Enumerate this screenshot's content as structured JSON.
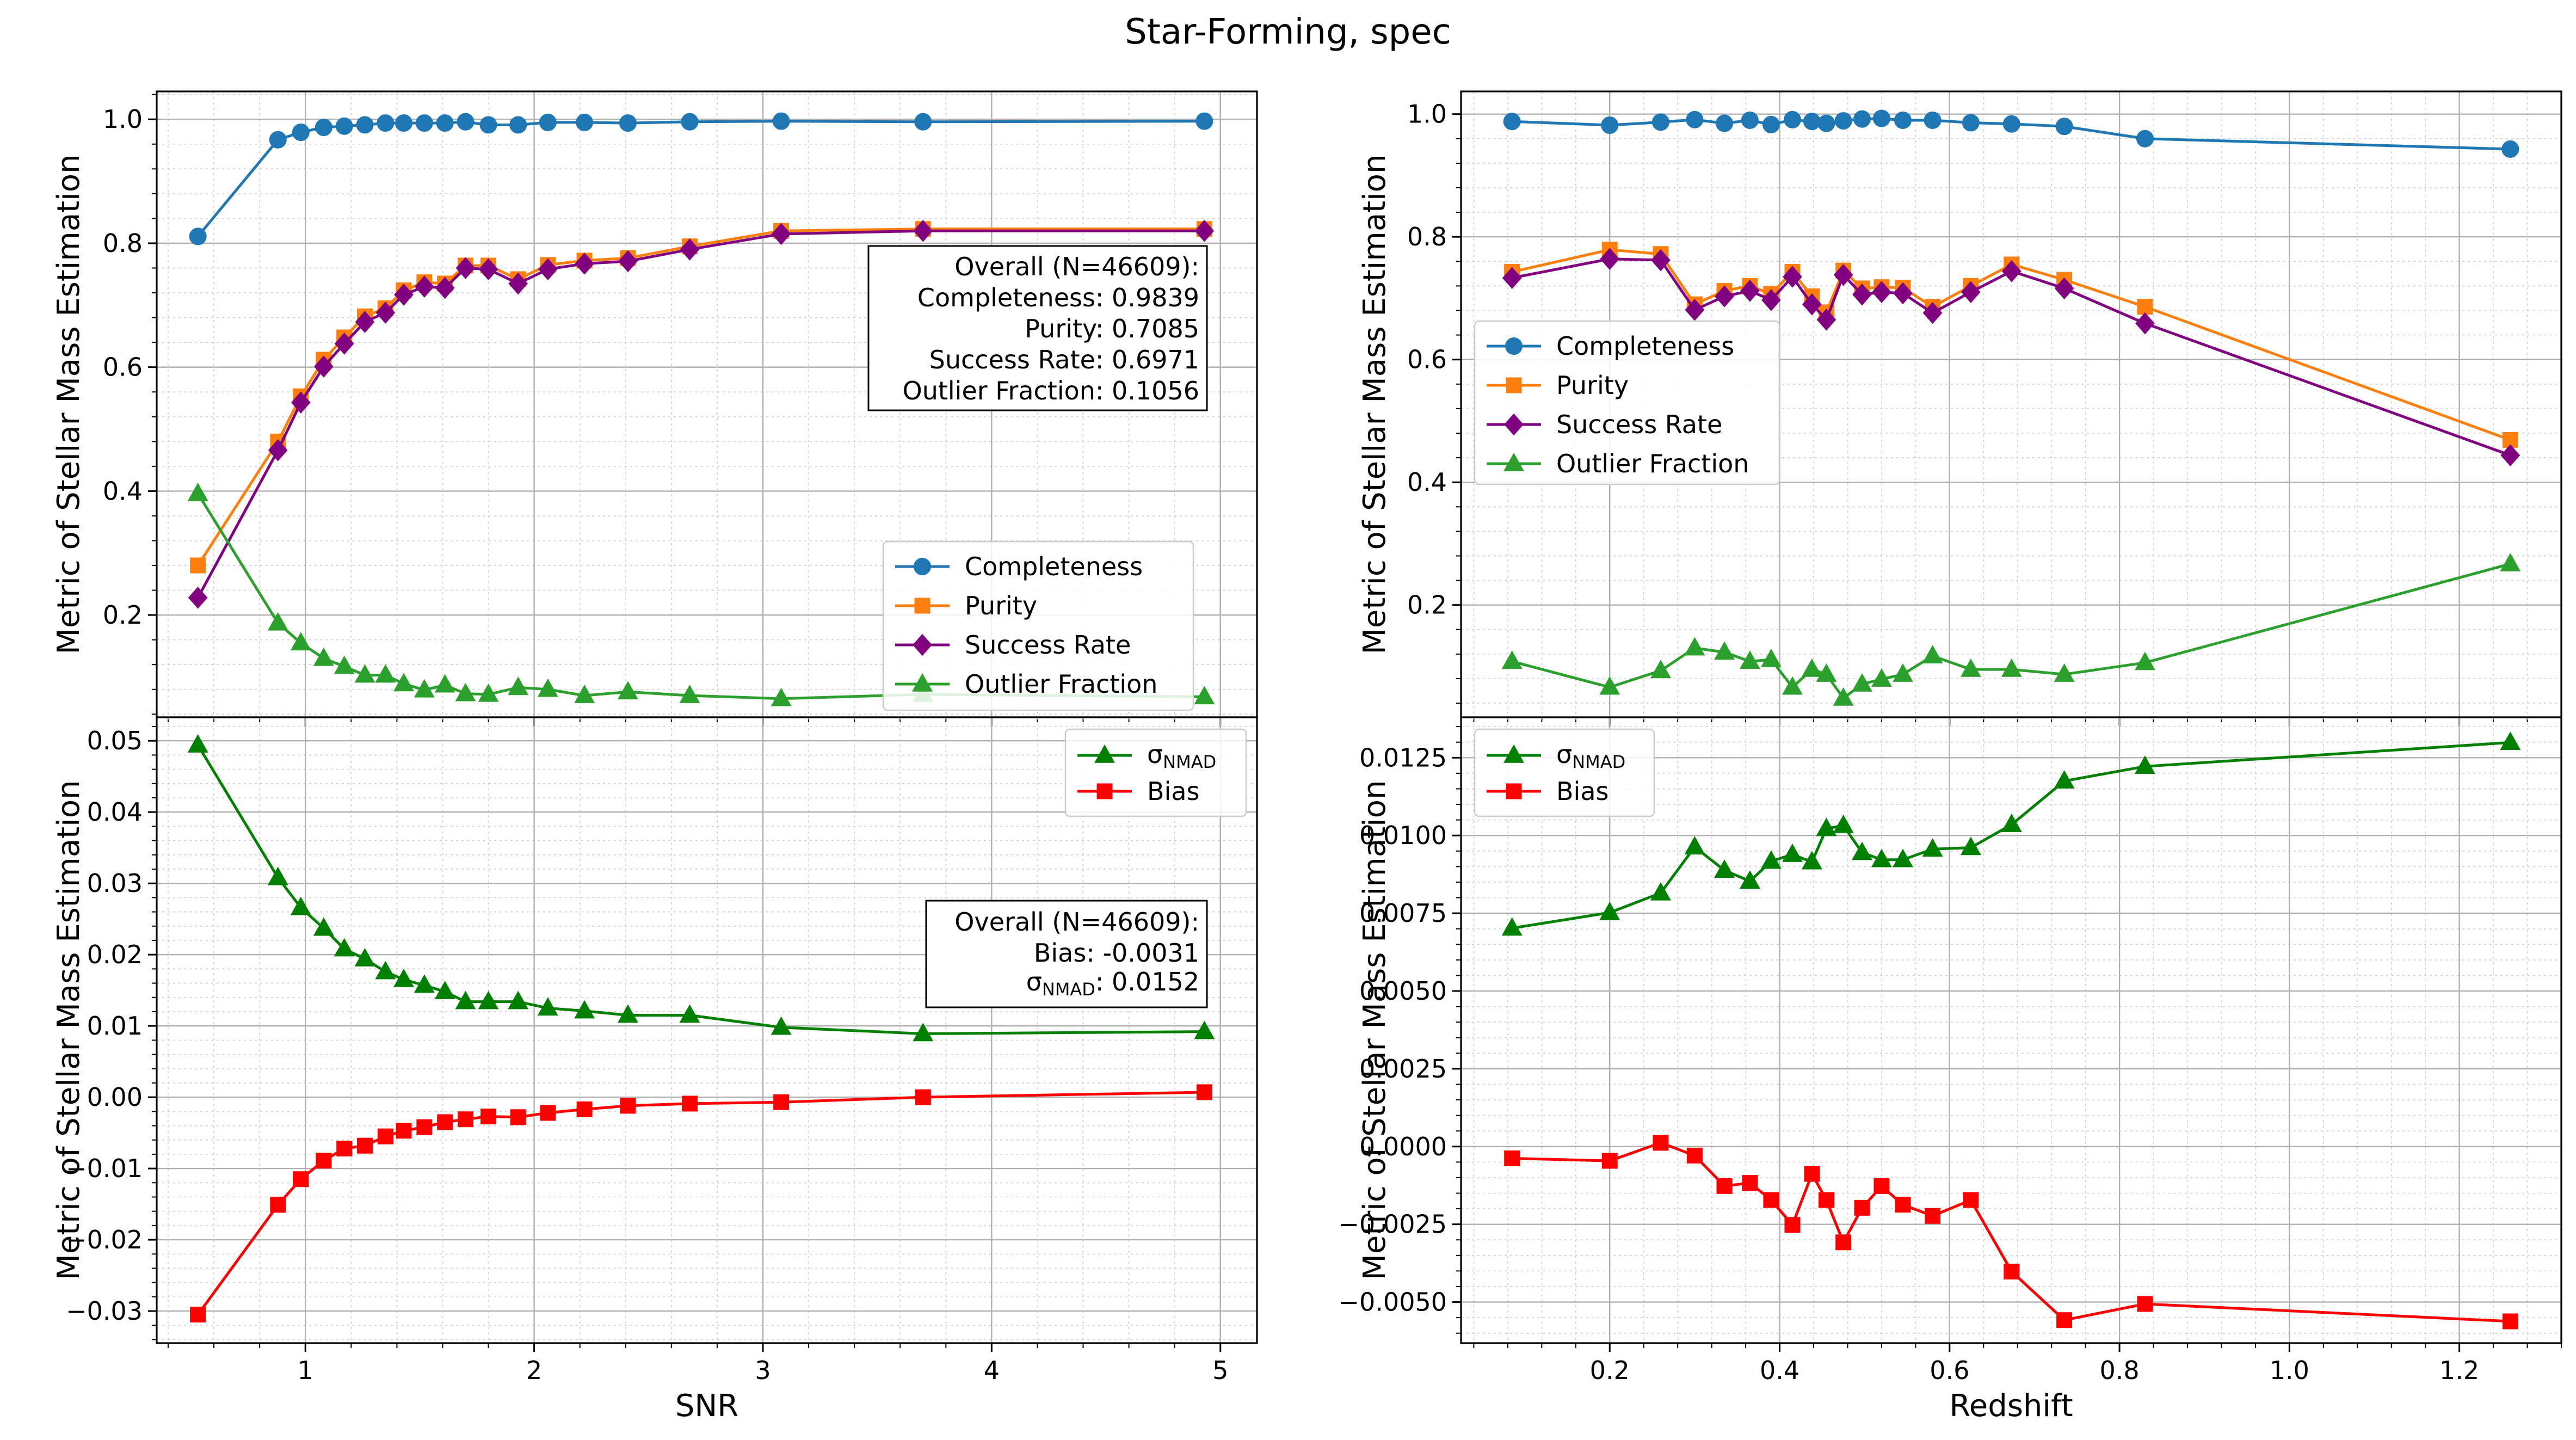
{
  "figure": {
    "title": "Star-Forming, spec"
  },
  "chart_data": [
    {
      "id": "snr-metrics",
      "type": "line",
      "xlabel": "",
      "ylabel": "Metric of Stellar Mass Estimation",
      "xlim": [
        0.35,
        5.16
      ],
      "ylim": [
        0.035,
        1.045
      ],
      "xticks": [],
      "yticks": [
        0.2,
        0.4,
        0.6,
        0.8,
        1.0
      ],
      "ytick_labels": [
        "0.2",
        "0.4",
        "0.6",
        "0.8",
        "1.0"
      ],
      "grid": true,
      "legend": "lower-right",
      "x": [
        0.53,
        0.88,
        0.98,
        1.08,
        1.17,
        1.26,
        1.35,
        1.43,
        1.52,
        1.61,
        1.7,
        1.8,
        1.93,
        2.06,
        2.22,
        2.41,
        2.68,
        3.08,
        3.7,
        4.93
      ],
      "series": [
        {
          "name": "Completeness",
          "color": "#1f77b4",
          "marker": "circle",
          "values": [
            0.811,
            0.967,
            0.979,
            0.987,
            0.989,
            0.991,
            0.994,
            0.994,
            0.994,
            0.994,
            0.996,
            0.991,
            0.991,
            0.995,
            0.995,
            0.994,
            0.996,
            0.997,
            0.996,
            0.997
          ]
        },
        {
          "name": "Purity",
          "color": "#ff7f0e",
          "marker": "square",
          "values": [
            0.28,
            0.48,
            0.553,
            0.612,
            0.648,
            0.682,
            0.695,
            0.724,
            0.737,
            0.735,
            0.764,
            0.764,
            0.742,
            0.765,
            0.772,
            0.776,
            0.795,
            0.82,
            0.823,
            0.823
          ]
        },
        {
          "name": "Success Rate",
          "color": "#800080",
          "marker": "diamond",
          "values": [
            0.228,
            0.466,
            0.543,
            0.601,
            0.638,
            0.673,
            0.688,
            0.717,
            0.73,
            0.728,
            0.76,
            0.758,
            0.735,
            0.758,
            0.767,
            0.771,
            0.79,
            0.815,
            0.82,
            0.82
          ]
        },
        {
          "name": "Outlier Fraction",
          "color": "#2ca02c",
          "marker": "triangle",
          "values": [
            0.396,
            0.187,
            0.155,
            0.13,
            0.117,
            0.103,
            0.103,
            0.089,
            0.079,
            0.087,
            0.073,
            0.072,
            0.083,
            0.08,
            0.07,
            0.076,
            0.07,
            0.065,
            0.072,
            0.068
          ]
        }
      ],
      "stats_box": {
        "lines": [
          "Overall (N=46609):",
          "Completeness: 0.9839",
          "Purity: 0.7085",
          "Success Rate: 0.6971",
          "Outlier Fraction: 0.1056"
        ]
      }
    },
    {
      "id": "snr-bias",
      "type": "line",
      "xlabel": "SNR",
      "ylabel": "Metric of Stellar Mass Estimation",
      "xlim": [
        0.35,
        5.16
      ],
      "ylim": [
        -0.0345,
        0.0533
      ],
      "xticks": [
        1,
        2,
        3,
        4,
        5
      ],
      "xtick_labels": [
        "1",
        "2",
        "3",
        "4",
        "5"
      ],
      "yticks": [
        -0.03,
        -0.02,
        -0.01,
        0.0,
        0.01,
        0.02,
        0.03,
        0.04,
        0.05
      ],
      "ytick_labels": [
        "−0.03",
        "−0.02",
        "−0.01",
        "0.00",
        "0.01",
        "0.02",
        "0.03",
        "0.04",
        "0.05"
      ],
      "grid": true,
      "legend": "upper-right",
      "x": [
        0.53,
        0.88,
        0.98,
        1.08,
        1.17,
        1.26,
        1.35,
        1.43,
        1.52,
        1.61,
        1.7,
        1.8,
        1.93,
        2.06,
        2.22,
        2.41,
        2.68,
        3.08,
        3.7,
        4.93
      ],
      "series": [
        {
          "name": "σ_NMAD",
          "color": "#008000",
          "marker": "triangle",
          "values": [
            0.0494,
            0.0308,
            0.0266,
            0.0237,
            0.0208,
            0.0194,
            0.0176,
            0.0165,
            0.0157,
            0.0148,
            0.0134,
            0.0134,
            0.0134,
            0.0125,
            0.0121,
            0.0115,
            0.0115,
            0.0098,
            0.0089,
            0.0092
          ]
        },
        {
          "name": "Bias",
          "color": "#ff0000",
          "marker": "square",
          "values": [
            -0.0305,
            -0.0151,
            -0.0115,
            -0.0089,
            -0.0072,
            -0.0068,
            -0.0055,
            -0.0047,
            -0.0042,
            -0.0035,
            -0.0031,
            -0.0027,
            -0.0028,
            -0.0022,
            -0.0017,
            -0.0012,
            -0.0009,
            -0.0007,
            0.0,
            0.0007
          ]
        }
      ],
      "legend_labels": {
        "sigma_base": "σ",
        "sigma_sub": "NMAD",
        "bias": "Bias"
      },
      "stats_box": {
        "line1": "Overall (N=46609):",
        "line2": "Bias: -0.0031",
        "sigma_base": "σ",
        "sigma_sub": "NMAD",
        "sigma_value": ": 0.0152"
      }
    },
    {
      "id": "redshift-metrics",
      "type": "line",
      "xlabel": "",
      "ylabel": "Metric of Stellar Mass Estimation",
      "xlim": [
        0.025,
        1.32
      ],
      "ylim": [
        0.017,
        1.037
      ],
      "xticks": [],
      "yticks": [
        0.2,
        0.4,
        0.6,
        0.8,
        1.0
      ],
      "ytick_labels": [
        "0.2",
        "0.4",
        "0.6",
        "0.8",
        "1.0"
      ],
      "grid": true,
      "legend": "center-left",
      "x": [
        0.085,
        0.2,
        0.26,
        0.3,
        0.335,
        0.365,
        0.39,
        0.415,
        0.438,
        0.455,
        0.475,
        0.497,
        0.52,
        0.545,
        0.58,
        0.625,
        0.673,
        0.735,
        0.83,
        1.26
      ],
      "series": [
        {
          "name": "Completeness",
          "color": "#1f77b4",
          "marker": "circle",
          "values": [
            0.988,
            0.982,
            0.987,
            0.991,
            0.985,
            0.99,
            0.983,
            0.991,
            0.988,
            0.985,
            0.989,
            0.992,
            0.993,
            0.99,
            0.99,
            0.986,
            0.984,
            0.98,
            0.96,
            0.943
          ]
        },
        {
          "name": "Purity",
          "color": "#ff7f0e",
          "marker": "square",
          "values": [
            0.743,
            0.779,
            0.772,
            0.69,
            0.712,
            0.72,
            0.707,
            0.743,
            0.703,
            0.677,
            0.745,
            0.716,
            0.718,
            0.717,
            0.686,
            0.72,
            0.755,
            0.73,
            0.686,
            0.469
          ]
        },
        {
          "name": "Success Rate",
          "color": "#800080",
          "marker": "diamond",
          "values": [
            0.733,
            0.764,
            0.762,
            0.681,
            0.703,
            0.712,
            0.697,
            0.735,
            0.69,
            0.665,
            0.738,
            0.706,
            0.71,
            0.708,
            0.676,
            0.71,
            0.744,
            0.716,
            0.659,
            0.444
          ]
        },
        {
          "name": "Outlier Fraction",
          "color": "#2ca02c",
          "marker": "triangle",
          "values": [
            0.108,
            0.066,
            0.093,
            0.13,
            0.123,
            0.108,
            0.111,
            0.066,
            0.095,
            0.087,
            0.048,
            0.071,
            0.079,
            0.087,
            0.117,
            0.095,
            0.095,
            0.087,
            0.106,
            0.267
          ]
        }
      ]
    },
    {
      "id": "redshift-bias",
      "type": "line",
      "xlabel": "Redshift",
      "ylabel": "Metric of Stellar Mass Estimation",
      "xlim": [
        0.025,
        1.32
      ],
      "ylim": [
        -0.00632,
        0.0138
      ],
      "xticks": [
        0.2,
        0.4,
        0.6,
        0.8,
        1.0,
        1.2
      ],
      "xtick_labels": [
        "0.2",
        "0.4",
        "0.6",
        "0.8",
        "1.0",
        "1.2"
      ],
      "yticks": [
        -0.005,
        -0.0025,
        0.0,
        0.0025,
        0.005,
        0.0075,
        0.01,
        0.0125
      ],
      "ytick_labels": [
        "−0.0050",
        "−0.0025",
        "0.0000",
        "0.0025",
        "0.0050",
        "0.0075",
        "0.0100",
        "0.0125"
      ],
      "grid": true,
      "legend": "upper-left",
      "x": [
        0.085,
        0.2,
        0.26,
        0.3,
        0.335,
        0.365,
        0.39,
        0.415,
        0.438,
        0.455,
        0.475,
        0.497,
        0.52,
        0.545,
        0.58,
        0.625,
        0.673,
        0.735,
        0.83,
        1.26
      ],
      "series": [
        {
          "name": "σ_NMAD",
          "color": "#008000",
          "marker": "triangle",
          "values": [
            0.00702,
            0.00752,
            0.00815,
            0.00963,
            0.00888,
            0.00853,
            0.00917,
            0.00939,
            0.00915,
            0.01022,
            0.01032,
            0.00945,
            0.00922,
            0.00922,
            0.00956,
            0.00961,
            0.01035,
            0.01175,
            0.01222,
            0.01299
          ]
        },
        {
          "name": "Bias",
          "color": "#ff0000",
          "marker": "square",
          "values": [
            -0.00038,
            -0.00046,
            0.00012,
            -0.00029,
            -0.00127,
            -0.00117,
            -0.00172,
            -0.00252,
            -0.00088,
            -0.00172,
            -0.00308,
            -0.00197,
            -0.00127,
            -0.00187,
            -0.00223,
            -0.00172,
            -0.00402,
            -0.00558,
            -0.00506,
            -0.00562
          ]
        }
      ],
      "legend_labels": {
        "sigma_base": "σ",
        "sigma_sub": "NMAD",
        "bias": "Bias"
      }
    }
  ]
}
